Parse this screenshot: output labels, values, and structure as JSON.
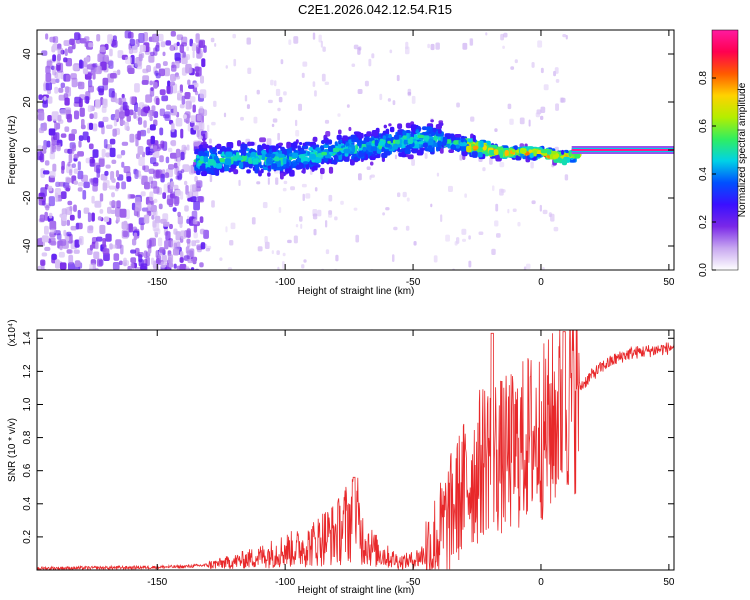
{
  "title": "C2E1.2026.042.12.54.R15",
  "chart_data": [
    {
      "type": "heatmap",
      "xlabel": "Height of straight line (km)",
      "ylabel": "Frequency (Hz)",
      "xlim": [
        -197,
        52
      ],
      "ylim": [
        -50,
        50
      ],
      "xticks": [
        -150,
        -100,
        -50,
        0,
        50
      ],
      "yticks": [
        -40,
        -20,
        0,
        20,
        40
      ],
      "colorbar": {
        "label": "Normalized spectral amplitude",
        "ticks": [
          0.0,
          0.2,
          0.4,
          0.6,
          0.8
        ],
        "colors": [
          "#ffffff",
          "#c8a8f0",
          "#7a28e8",
          "#3a10ff",
          "#0050ff",
          "#00d2e6",
          "#30ee60",
          "#b4ee00",
          "#ffd200",
          "#ff5a00",
          "#ff0050",
          "#ff1aa0"
        ]
      },
      "ridge": {
        "description_points_x": [
          -135,
          -120,
          -100,
          -80,
          -60,
          -45,
          -35,
          -25,
          -15,
          0,
          8,
          15,
          52
        ],
        "description_points_y": [
          -4,
          -2,
          -3,
          1,
          4,
          6,
          4,
          2,
          0,
          0,
          -2,
          0,
          0
        ]
      }
    },
    {
      "type": "line",
      "xlabel": "Height of straight line (km)",
      "ylabel": "SNR (10 * v/v)",
      "y_multiplier": "(x10⁴)",
      "xlim": [
        -197,
        52
      ],
      "ylim": [
        0,
        1.45
      ],
      "xticks": [
        -150,
        -100,
        -50,
        0,
        50
      ],
      "yticks": [
        0.2,
        0.4,
        0.6,
        0.8,
        1.0,
        1.2,
        1.4
      ],
      "line_color": "#e8282a",
      "series": [
        {
          "x": [
            -197,
            -180,
            -160,
            -140,
            -130,
            -120,
            -110,
            -100,
            -95,
            -90,
            -85,
            -80,
            -75,
            -72,
            -70,
            -65,
            -60,
            -55,
            -50,
            -45,
            -40,
            -35,
            -30,
            -25,
            -20,
            -18,
            -15,
            -10,
            -5,
            0,
            5,
            8,
            10,
            15,
            20,
            25,
            30,
            35,
            40,
            45,
            50,
            52
          ],
          "y": [
            0.01,
            0.012,
            0.015,
            0.02,
            0.03,
            0.05,
            0.08,
            0.12,
            0.13,
            0.15,
            0.2,
            0.22,
            0.3,
            0.32,
            0.2,
            0.12,
            0.08,
            0.05,
            0.06,
            0.1,
            0.2,
            0.35,
            0.5,
            0.6,
            0.75,
            0.7,
            0.68,
            0.72,
            0.8,
            0.82,
            0.9,
            1.0,
            1.05,
            1.1,
            1.18,
            1.24,
            1.28,
            1.31,
            1.32,
            1.33,
            1.34,
            1.35
          ]
        }
      ]
    }
  ]
}
